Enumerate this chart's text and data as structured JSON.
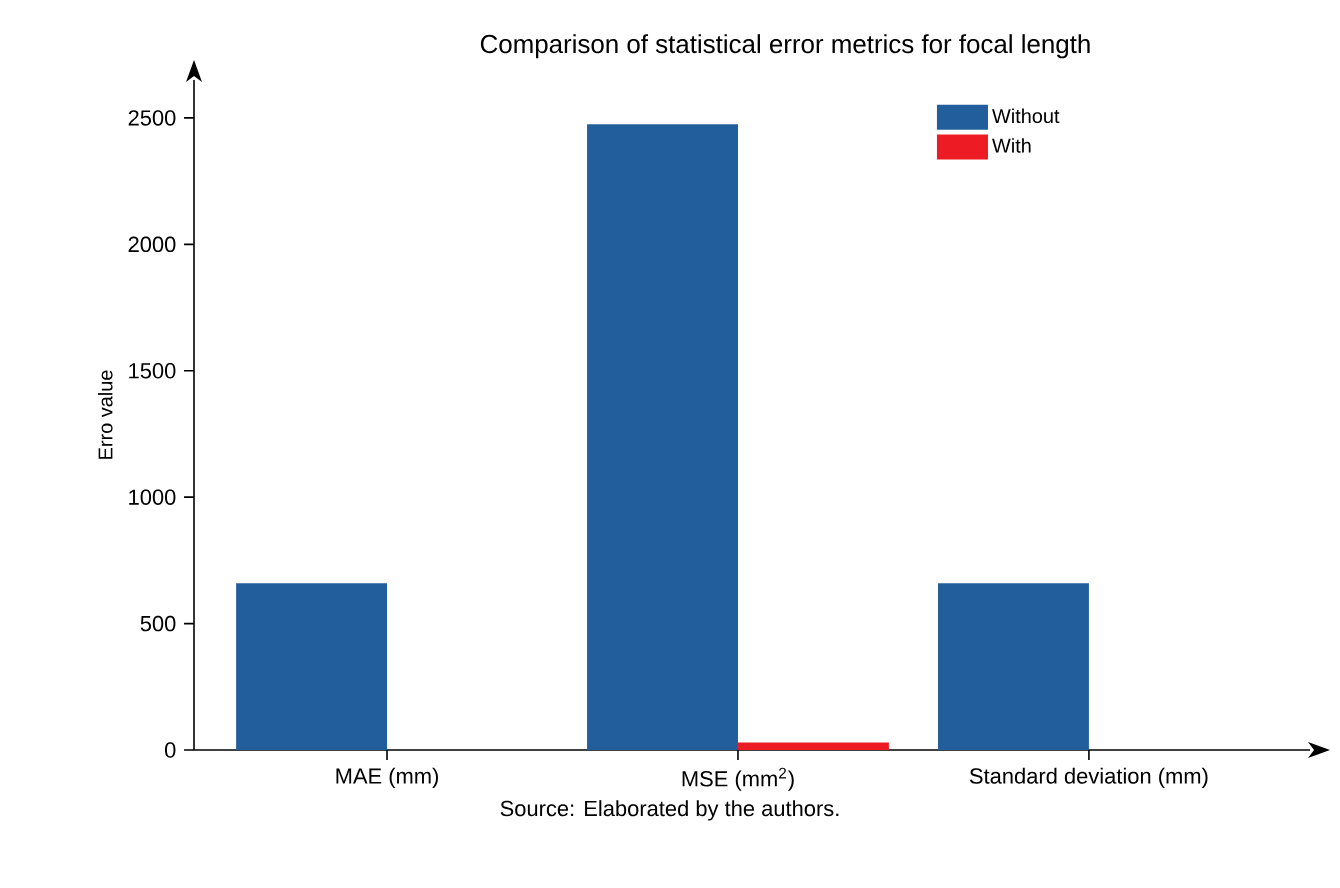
{
  "chart_data": {
    "type": "bar",
    "title": "Comparison of statistical error metrics for focal length",
    "categories": [
      "MAE (mm)",
      "MSE (mm$^{2}$)",
      "Standard deviation (mm)"
    ],
    "series": [
      {
        "name": "Without",
        "color": "#225e9c",
        "values": [
          660,
          2475,
          660
        ]
      },
      {
        "name": "With",
        "color": "#ed1c24",
        "values": [
          0,
          30,
          0
        ]
      }
    ],
    "ylabel": "Erro value",
    "ylim": [
      0,
      2650
    ],
    "yticks": [
      0,
      500,
      1000,
      1500,
      2000,
      2500
    ],
    "legend": "top right",
    "annotations": [
      "Source:  Elaborated by the authors."
    ]
  }
}
